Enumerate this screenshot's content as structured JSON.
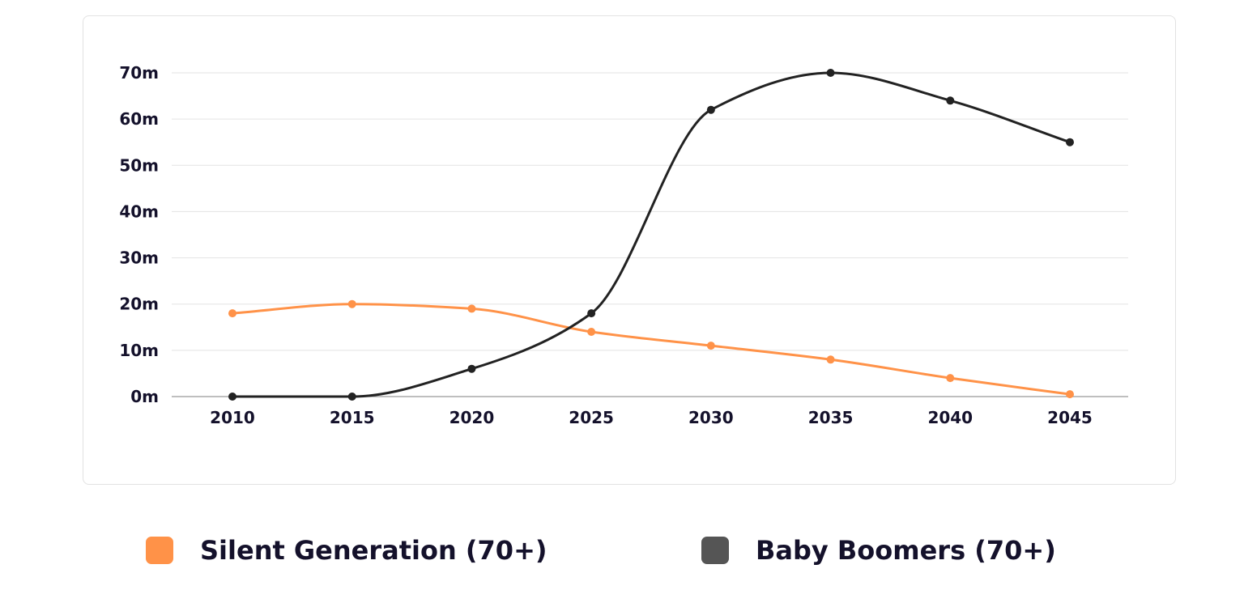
{
  "chart_data": {
    "type": "line",
    "title": "",
    "xlabel": "",
    "ylabel": "",
    "x": [
      "2010",
      "2015",
      "2020",
      "2025",
      "2030",
      "2035",
      "2040",
      "2045"
    ],
    "y_ticks": [
      "0m",
      "10m",
      "20m",
      "30m",
      "40m",
      "50m",
      "60m",
      "70m"
    ],
    "ylim": [
      0,
      70
    ],
    "grid": true,
    "legend_placement": "bottom",
    "series": [
      {
        "name": "Silent Generation (70+)",
        "color": "#ff9248",
        "values": [
          18,
          20,
          19,
          14,
          11,
          8,
          4,
          0.5
        ]
      },
      {
        "name": "Baby Boomers (70+)",
        "color": "#222222",
        "legend_color": "#555555",
        "values": [
          0,
          0,
          6,
          18,
          62,
          70,
          64,
          55
        ]
      }
    ]
  }
}
